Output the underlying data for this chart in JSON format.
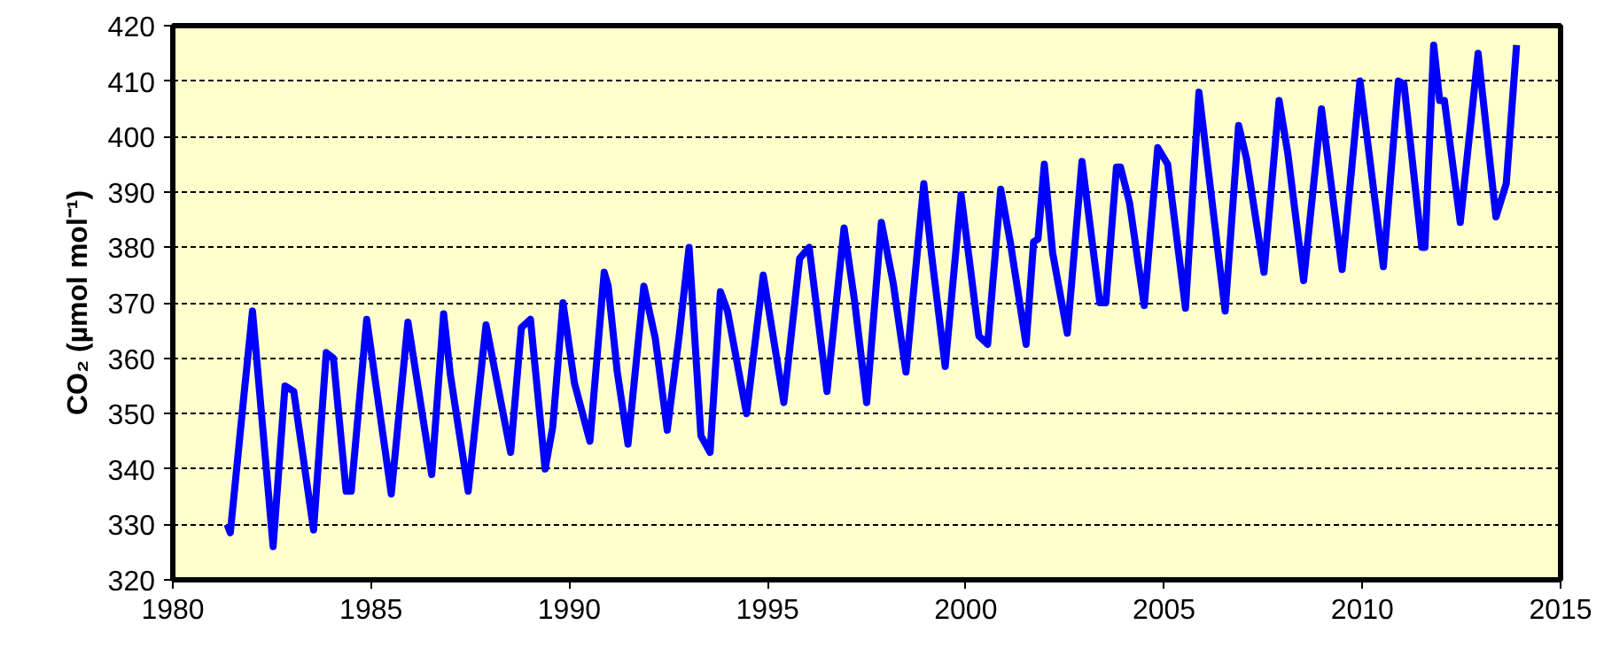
{
  "chart_data": {
    "type": "line",
    "ylabel": "CO₂ (µmol mol⁻¹)",
    "x": [
      1981.37,
      1981.45,
      1981.79,
      1982.01,
      1982.53,
      1982.83,
      1983.05,
      1983.55,
      1983.87,
      1984.05,
      1984.37,
      1984.5,
      1984.89,
      1985.51,
      1985.93,
      1986.53,
      1986.83,
      1987.0,
      1987.45,
      1987.9,
      1988.52,
      1988.79,
      1989.02,
      1989.39,
      1989.58,
      1989.84,
      1990.13,
      1990.52,
      1990.88,
      1990.98,
      1991.21,
      1991.48,
      1991.88,
      1992.17,
      1992.47,
      1992.77,
      1993.02,
      1993.32,
      1993.55,
      1993.81,
      1993.99,
      1994.47,
      1994.89,
      1995.41,
      1995.81,
      1996.05,
      1996.5,
      1996.93,
      1997.2,
      1997.5,
      1997.87,
      1998.17,
      1998.49,
      1998.94,
      1999.13,
      1999.48,
      1999.88,
      2000.33,
      2000.55,
      2000.88,
      2001.12,
      2001.52,
      2001.71,
      2001.82,
      2001.98,
      2002.19,
      2002.56,
      2002.93,
      2003.38,
      2003.53,
      2003.8,
      2003.9,
      2004.13,
      2004.5,
      2004.84,
      2005.09,
      2005.54,
      2005.88,
      2006.54,
      2006.88,
      2007.08,
      2007.52,
      2007.9,
      2008.12,
      2008.52,
      2008.97,
      2009.49,
      2009.94,
      2010.53,
      2010.91,
      2011.05,
      2011.5,
      2011.58,
      2011.8,
      2011.95,
      2012.07,
      2012.47,
      2012.92,
      2013.37,
      2013.63,
      2013.89
    ],
    "series": [
      {
        "color": "#0000ff",
        "values": [
          330,
          328.5,
          353,
          368.5,
          326,
          355,
          354,
          329,
          361,
          360,
          336,
          336,
          367,
          335.5,
          366.5,
          339,
          368,
          357,
          336,
          366,
          343,
          365.5,
          367,
          340,
          347.5,
          370,
          355.5,
          345,
          375.5,
          373,
          357.5,
          344.5,
          373,
          363.5,
          347,
          364,
          380,
          346,
          343,
          372,
          368.5,
          350,
          375,
          352,
          378,
          380,
          354,
          383.5,
          370,
          352,
          384.5,
          373.5,
          357.5,
          391.5,
          379,
          358.5,
          389.5,
          364,
          362.5,
          390.5,
          381,
          362.5,
          381,
          381.5,
          395,
          379,
          364.5,
          395.5,
          370,
          370,
          394.5,
          394.5,
          388,
          369.5,
          398,
          395,
          369,
          408,
          368.5,
          402,
          396,
          375.5,
          406.5,
          397,
          374,
          405,
          376,
          410,
          376.5,
          410,
          409.5,
          380,
          380,
          416.5,
          406.5,
          406.5,
          384.5,
          415,
          385.5,
          391.5,
          416.5
        ]
      }
    ],
    "xlim": [
      1980,
      2015
    ],
    "xticks": [
      1980,
      1985,
      1990,
      1995,
      2000,
      2005,
      2010,
      2015
    ],
    "ylim": [
      320,
      420
    ],
    "yticks": [
      320,
      330,
      340,
      350,
      360,
      370,
      380,
      390,
      400,
      410,
      420
    ],
    "grid": "y",
    "marker": "none",
    "line_style": "solid"
  }
}
